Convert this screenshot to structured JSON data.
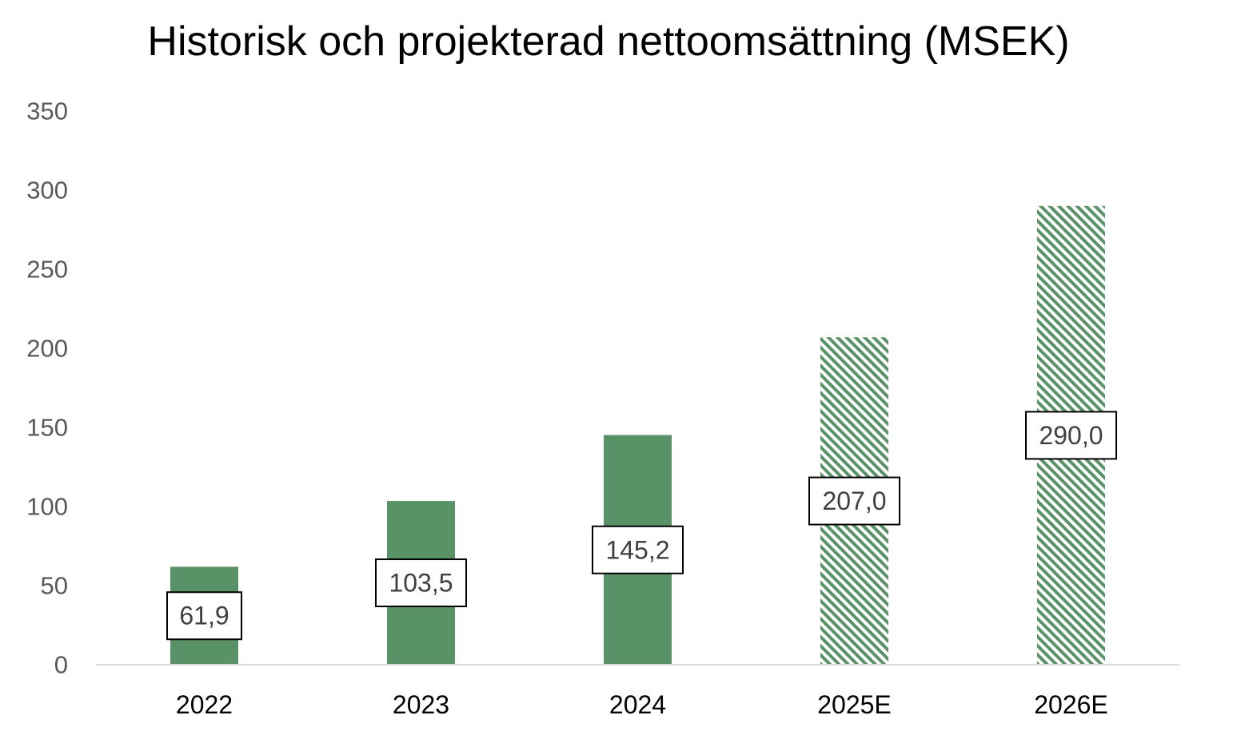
{
  "chart_data": {
    "type": "bar",
    "title": "Historisk och projekterad nettoomsättning (MSEK)",
    "xlabel": "",
    "ylabel": "",
    "categories": [
      "2022",
      "2023",
      "2024",
      "2025E",
      "2026E"
    ],
    "values": [
      61.9,
      103.5,
      145.2,
      207.0,
      290.0
    ],
    "data_labels": [
      "61,9",
      "103,5",
      "145,2",
      "207,0",
      "290,0"
    ],
    "projected": [
      false,
      false,
      false,
      true,
      true
    ],
    "ylim": [
      0,
      350
    ],
    "yticks": [
      0,
      50,
      100,
      150,
      200,
      250,
      300,
      350
    ],
    "grid": false,
    "legend": "none",
    "colors": {
      "bar": "#5a9268",
      "hatch": "#5a9268",
      "axis": "#d9d9d9"
    }
  }
}
